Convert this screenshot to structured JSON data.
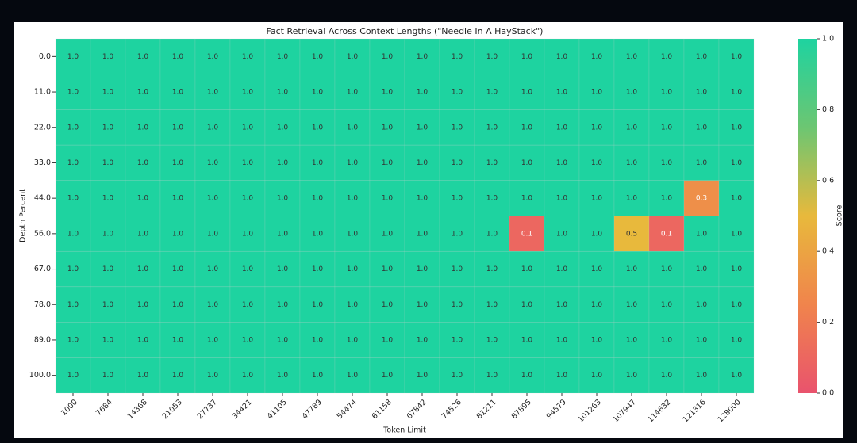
{
  "chart_data": {
    "type": "heatmap",
    "title": "Fact Retrieval Across Context Lengths (\"Needle In A HayStack\")",
    "x_label": "Token Limit",
    "y_label": "Depth Percent",
    "colorbar_label": "Score",
    "categories": [
      "1000",
      "7684",
      "14368",
      "21053",
      "27737",
      "34421",
      "41105",
      "47789",
      "54474",
      "61158",
      "67842",
      "74526",
      "81211",
      "87895",
      "94579",
      "101263",
      "107947",
      "114632",
      "121316",
      "128000"
    ],
    "rows": [
      "0.0",
      "11.0",
      "22.0",
      "33.0",
      "44.0",
      "56.0",
      "67.0",
      "78.0",
      "89.0",
      "100.0"
    ],
    "values": [
      [
        1,
        1,
        1,
        1,
        1,
        1,
        1,
        1,
        1,
        1,
        1,
        1,
        1,
        1,
        1,
        1,
        1,
        1,
        1,
        1
      ],
      [
        1,
        1,
        1,
        1,
        1,
        1,
        1,
        1,
        1,
        1,
        1,
        1,
        1,
        1,
        1,
        1,
        1,
        1,
        1,
        1
      ],
      [
        1,
        1,
        1,
        1,
        1,
        1,
        1,
        1,
        1,
        1,
        1,
        1,
        1,
        1,
        1,
        1,
        1,
        1,
        1,
        1
      ],
      [
        1,
        1,
        1,
        1,
        1,
        1,
        1,
        1,
        1,
        1,
        1,
        1,
        1,
        1,
        1,
        1,
        1,
        1,
        1,
        1
      ],
      [
        1,
        1,
        1,
        1,
        1,
        1,
        1,
        1,
        1,
        1,
        1,
        1,
        1,
        1,
        1,
        1,
        1,
        1,
        0.3,
        1
      ],
      [
        1,
        1,
        1,
        1,
        1,
        1,
        1,
        1,
        1,
        1,
        1,
        1,
        1,
        0.1,
        1,
        1,
        0.5,
        0.1,
        1,
        1
      ],
      [
        1,
        1,
        1,
        1,
        1,
        1,
        1,
        1,
        1,
        1,
        1,
        1,
        1,
        1,
        1,
        1,
        1,
        1,
        1,
        1
      ],
      [
        1,
        1,
        1,
        1,
        1,
        1,
        1,
        1,
        1,
        1,
        1,
        1,
        1,
        1,
        1,
        1,
        1,
        1,
        1,
        1
      ],
      [
        1,
        1,
        1,
        1,
        1,
        1,
        1,
        1,
        1,
        1,
        1,
        1,
        1,
        1,
        1,
        1,
        1,
        1,
        1,
        1
      ],
      [
        1,
        1,
        1,
        1,
        1,
        1,
        1,
        1,
        1,
        1,
        1,
        1,
        1,
        1,
        1,
        1,
        1,
        1,
        1,
        1
      ]
    ],
    "value_labels": [
      [
        "1.0",
        "1.0",
        "1.0",
        "1.0",
        "1.0",
        "1.0",
        "1.0",
        "1.0",
        "1.0",
        "1.0",
        "1.0",
        "1.0",
        "1.0",
        "1.0",
        "1.0",
        "1.0",
        "1.0",
        "1.0",
        "1.0",
        "1.0"
      ],
      [
        "1.0",
        "1.0",
        "1.0",
        "1.0",
        "1.0",
        "1.0",
        "1.0",
        "1.0",
        "1.0",
        "1.0",
        "1.0",
        "1.0",
        "1.0",
        "1.0",
        "1.0",
        "1.0",
        "1.0",
        "1.0",
        "1.0",
        "1.0"
      ],
      [
        "1.0",
        "1.0",
        "1.0",
        "1.0",
        "1.0",
        "1.0",
        "1.0",
        "1.0",
        "1.0",
        "1.0",
        "1.0",
        "1.0",
        "1.0",
        "1.0",
        "1.0",
        "1.0",
        "1.0",
        "1.0",
        "1.0",
        "1.0"
      ],
      [
        "1.0",
        "1.0",
        "1.0",
        "1.0",
        "1.0",
        "1.0",
        "1.0",
        "1.0",
        "1.0",
        "1.0",
        "1.0",
        "1.0",
        "1.0",
        "1.0",
        "1.0",
        "1.0",
        "1.0",
        "1.0",
        "1.0",
        "1.0"
      ],
      [
        "1.0",
        "1.0",
        "1.0",
        "1.0",
        "1.0",
        "1.0",
        "1.0",
        "1.0",
        "1.0",
        "1.0",
        "1.0",
        "1.0",
        "1.0",
        "1.0",
        "1.0",
        "1.0",
        "1.0",
        "1.0",
        "0.3",
        "1.0"
      ],
      [
        "1.0",
        "1.0",
        "1.0",
        "1.0",
        "1.0",
        "1.0",
        "1.0",
        "1.0",
        "1.0",
        "1.0",
        "1.0",
        "1.0",
        "1.0",
        "0.1",
        "1.0",
        "1.0",
        "0.5",
        "0.1",
        "1.0",
        "1.0"
      ],
      [
        "1.0",
        "1.0",
        "1.0",
        "1.0",
        "1.0",
        "1.0",
        "1.0",
        "1.0",
        "1.0",
        "1.0",
        "1.0",
        "1.0",
        "1.0",
        "1.0",
        "1.0",
        "1.0",
        "1.0",
        "1.0",
        "1.0",
        "1.0"
      ],
      [
        "1.0",
        "1.0",
        "1.0",
        "1.0",
        "1.0",
        "1.0",
        "1.0",
        "1.0",
        "1.0",
        "1.0",
        "1.0",
        "1.0",
        "1.0",
        "1.0",
        "1.0",
        "1.0",
        "1.0",
        "1.0",
        "1.0",
        "1.0"
      ],
      [
        "1.0",
        "1.0",
        "1.0",
        "1.0",
        "1.0",
        "1.0",
        "1.0",
        "1.0",
        "1.0",
        "1.0",
        "1.0",
        "1.0",
        "1.0",
        "1.0",
        "1.0",
        "1.0",
        "1.0",
        "1.0",
        "1.0",
        "1.0"
      ],
      [
        "1.0",
        "1.0",
        "1.0",
        "1.0",
        "1.0",
        "1.0",
        "1.0",
        "1.0",
        "1.0",
        "1.0",
        "1.0",
        "1.0",
        "1.0",
        "1.0",
        "1.0",
        "1.0",
        "1.0",
        "1.0",
        "1.0",
        "1.0"
      ]
    ],
    "colorscale": [
      "#e9536d",
      "#f0844c",
      "#e8b93c",
      "#6cc672",
      "#1ed3a0"
    ],
    "clim": [
      0,
      1
    ],
    "cticks": [
      {
        "value": 0,
        "label": "0.0"
      },
      {
        "value": 0.2,
        "label": "0.2"
      },
      {
        "value": 0.4,
        "label": "0.4"
      },
      {
        "value": 0.6,
        "label": "0.6"
      },
      {
        "value": 0.8,
        "label": "0.8"
      },
      {
        "value": 1,
        "label": "1.0"
      }
    ]
  }
}
